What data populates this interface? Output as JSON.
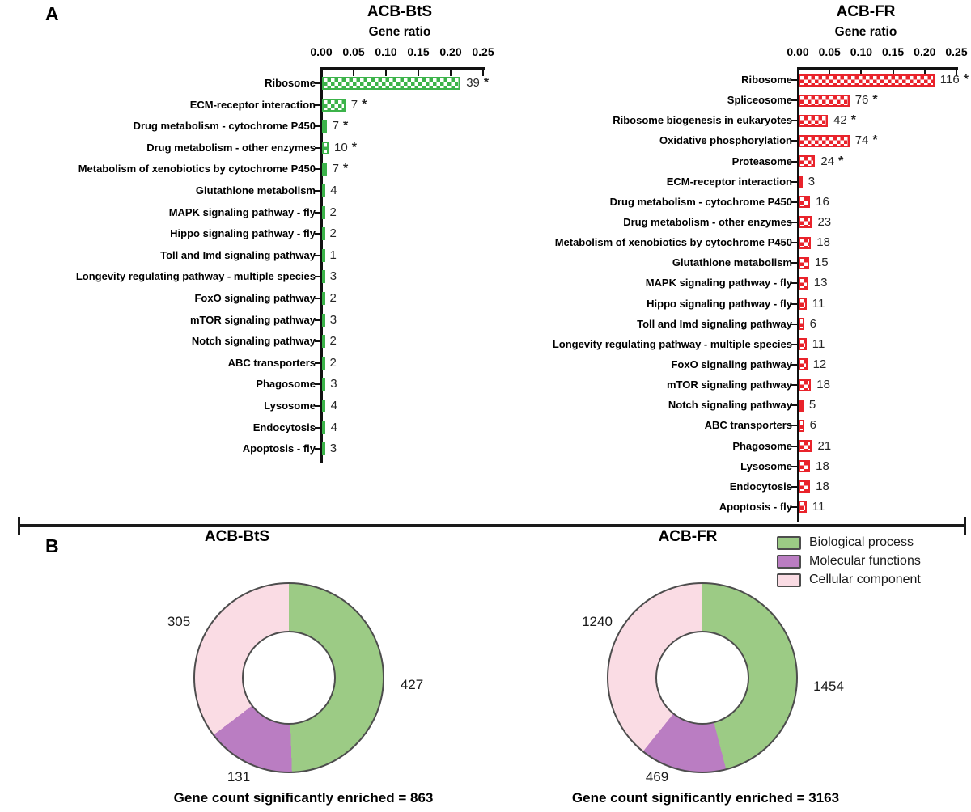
{
  "panel_a": {
    "label": "A"
  },
  "panel_b": {
    "label": "B",
    "legend": [
      {
        "label": "Biological process",
        "color": "#9ccb85"
      },
      {
        "label": "Molecular functions",
        "color": "#ba7dc2"
      },
      {
        "label": "Cellular component",
        "color": "#fadce4"
      }
    ]
  },
  "chart_data": [
    {
      "type": "bar",
      "orientation": "horizontal",
      "title": "ACB-BtS",
      "xlabel": "Gene ratio",
      "xlim": [
        0,
        0.25
      ],
      "x_ticks": [
        "0.00",
        "0.05",
        "0.10",
        "0.15",
        "0.20",
        "0.25"
      ],
      "bar_color": "#3cb34a",
      "bar_pattern": "checker",
      "significance_marker": "*",
      "rows": [
        {
          "label": "Ribosome",
          "count": 39,
          "gene_ratio": 0.214,
          "significant": true
        },
        {
          "label": "ECM-receptor interaction",
          "count": 7,
          "gene_ratio": 0.036,
          "significant": true
        },
        {
          "label": "Drug metabolism - cytochrome P450",
          "count": 7,
          "gene_ratio": 0.007,
          "significant": true
        },
        {
          "label": "Drug metabolism - other enzymes",
          "count": 10,
          "gene_ratio": 0.01,
          "significant": true
        },
        {
          "label": "Metabolism of xenobiotics by cytochrome P450",
          "count": 7,
          "gene_ratio": 0.007,
          "significant": true
        },
        {
          "label": "Glutathione metabolism",
          "count": 4,
          "gene_ratio": 0.004,
          "significant": false
        },
        {
          "label": "MAPK signaling pathway - fly",
          "count": 2,
          "gene_ratio": 0.003,
          "significant": false
        },
        {
          "label": "Hippo signaling pathway - fly",
          "count": 2,
          "gene_ratio": 0.003,
          "significant": false
        },
        {
          "label": "Toll and Imd signaling pathway",
          "count": 1,
          "gene_ratio": 0.0015,
          "significant": false
        },
        {
          "label": "Longevity regulating pathway - multiple species",
          "count": 3,
          "gene_ratio": 0.0035,
          "significant": false
        },
        {
          "label": "FoxO signaling pathway",
          "count": 2,
          "gene_ratio": 0.003,
          "significant": false
        },
        {
          "label": "mTOR signaling pathway",
          "count": 3,
          "gene_ratio": 0.0035,
          "significant": false
        },
        {
          "label": "Notch signaling pathway",
          "count": 2,
          "gene_ratio": 0.003,
          "significant": false
        },
        {
          "label": "ABC transporters",
          "count": 2,
          "gene_ratio": 0.003,
          "significant": false
        },
        {
          "label": "Phagosome",
          "count": 3,
          "gene_ratio": 0.004,
          "significant": false
        },
        {
          "label": "Lysosome",
          "count": 4,
          "gene_ratio": 0.0045,
          "significant": false
        },
        {
          "label": "Endocytosis",
          "count": 4,
          "gene_ratio": 0.0045,
          "significant": false
        },
        {
          "label": "Apoptosis - fly",
          "count": 3,
          "gene_ratio": 0.0035,
          "significant": false
        }
      ]
    },
    {
      "type": "bar",
      "orientation": "horizontal",
      "title": "ACB-FR",
      "xlabel": "Gene ratio",
      "xlim": [
        0,
        0.25
      ],
      "x_ticks": [
        "0.00",
        "0.05",
        "0.10",
        "0.15",
        "0.20",
        "0.25"
      ],
      "bar_color": "#e9232b",
      "bar_pattern": "checker",
      "significance_marker": "*",
      "rows": [
        {
          "label": "Ribosome",
          "count": 116,
          "gene_ratio": 0.214,
          "significant": true
        },
        {
          "label": "Spliceosome",
          "count": 76,
          "gene_ratio": 0.08,
          "significant": true
        },
        {
          "label": "Ribosome biogenesis in eukaryotes",
          "count": 42,
          "gene_ratio": 0.046,
          "significant": true
        },
        {
          "label": "Oxidative phosphorylation",
          "count": 74,
          "gene_ratio": 0.08,
          "significant": true
        },
        {
          "label": "Proteasome",
          "count": 24,
          "gene_ratio": 0.026,
          "significant": true
        },
        {
          "label": "ECM-receptor interaction",
          "count": 3,
          "gene_ratio": 0.006,
          "significant": false
        },
        {
          "label": "Drug metabolism - cytochrome P450",
          "count": 16,
          "gene_ratio": 0.018,
          "significant": false
        },
        {
          "label": "Drug metabolism - other enzymes",
          "count": 23,
          "gene_ratio": 0.021,
          "significant": false
        },
        {
          "label": "Metabolism of xenobiotics by cytochrome P450",
          "count": 18,
          "gene_ratio": 0.0195,
          "significant": false
        },
        {
          "label": "Glutathione metabolism",
          "count": 15,
          "gene_ratio": 0.0165,
          "significant": false
        },
        {
          "label": "MAPK signaling pathway - fly",
          "count": 13,
          "gene_ratio": 0.015,
          "significant": false
        },
        {
          "label": "Hippo signaling pathway - fly",
          "count": 11,
          "gene_ratio": 0.0125,
          "significant": false
        },
        {
          "label": "Toll and Imd signaling pathway",
          "count": 6,
          "gene_ratio": 0.0085,
          "significant": false
        },
        {
          "label": "Longevity regulating pathway - multiple species",
          "count": 11,
          "gene_ratio": 0.0125,
          "significant": false
        },
        {
          "label": "FoxO signaling pathway",
          "count": 12,
          "gene_ratio": 0.0135,
          "significant": false
        },
        {
          "label": "mTOR signaling pathway",
          "count": 18,
          "gene_ratio": 0.0195,
          "significant": false
        },
        {
          "label": "Notch signaling pathway",
          "count": 5,
          "gene_ratio": 0.0075,
          "significant": false
        },
        {
          "label": "ABC transporters",
          "count": 6,
          "gene_ratio": 0.0085,
          "significant": false
        },
        {
          "label": "Phagosome",
          "count": 21,
          "gene_ratio": 0.021,
          "significant": false
        },
        {
          "label": "Lysosome",
          "count": 18,
          "gene_ratio": 0.018,
          "significant": false
        },
        {
          "label": "Endocytosis",
          "count": 18,
          "gene_ratio": 0.018,
          "significant": false
        },
        {
          "label": "Apoptosis - fly",
          "count": 11,
          "gene_ratio": 0.0125,
          "significant": false
        }
      ]
    },
    {
      "type": "donut",
      "title": "ACB-BtS",
      "caption": "Gene count significantly enriched = 863",
      "total": 863,
      "slices": [
        {
          "label": "Biological process",
          "value": 427,
          "color": "#9ccb85"
        },
        {
          "label": "Molecular functions",
          "value": 131,
          "color": "#ba7dc2"
        },
        {
          "label": "Cellular component",
          "value": 305,
          "color": "#fadce4"
        }
      ]
    },
    {
      "type": "donut",
      "title": "ACB-FR",
      "caption": "Gene count significantly enriched = 3163",
      "total": 3163,
      "slices": [
        {
          "label": "Biological process",
          "value": 1454,
          "color": "#9ccb85"
        },
        {
          "label": "Molecular functions",
          "value": 469,
          "color": "#ba7dc2"
        },
        {
          "label": "Cellular component",
          "value": 1240,
          "color": "#fadce4"
        }
      ]
    }
  ]
}
